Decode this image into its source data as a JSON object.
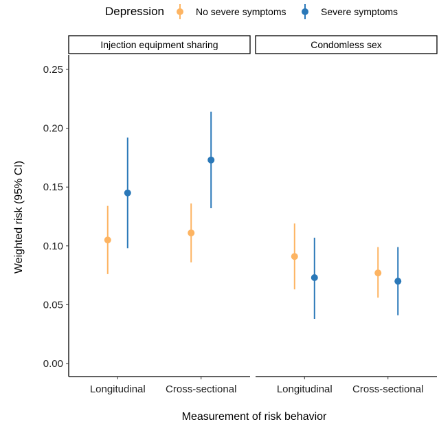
{
  "chart_data": {
    "type": "scatter",
    "subtype": "pointrange-faceted",
    "legend": {
      "title": "Depression",
      "position": "top",
      "entries": [
        {
          "label": "No severe symptoms",
          "color": "#FDB462"
        },
        {
          "label": "Severe symptoms",
          "color": "#2A78B8"
        }
      ]
    },
    "ylabel": "Weighted risk (95% CI)",
    "xlabel": "Measurement of risk behavior",
    "ylim": [
      0.0,
      0.26
    ],
    "yticks": [
      "0.00",
      "0.05",
      "0.10",
      "0.15",
      "0.20",
      "0.25"
    ],
    "ytick_values": [
      0.0,
      0.05,
      0.1,
      0.15,
      0.2,
      0.25
    ],
    "categories": [
      "Longitudinal",
      "Cross-sectional"
    ],
    "grid": false,
    "facets": [
      {
        "title": "Injection equipment sharing",
        "series": [
          {
            "name": "No severe symptoms",
            "color": "#FDB462",
            "points": [
              {
                "category": "Longitudinal",
                "estimate": 0.105,
                "lower": 0.076,
                "upper": 0.134
              },
              {
                "category": "Cross-sectional",
                "estimate": 0.111,
                "lower": 0.086,
                "upper": 0.136
              }
            ]
          },
          {
            "name": "Severe symptoms",
            "color": "#2A78B8",
            "points": [
              {
                "category": "Longitudinal",
                "estimate": 0.145,
                "lower": 0.098,
                "upper": 0.192
              },
              {
                "category": "Cross-sectional",
                "estimate": 0.173,
                "lower": 0.132,
                "upper": 0.214
              }
            ]
          }
        ]
      },
      {
        "title": "Condomless sex",
        "series": [
          {
            "name": "No severe symptoms",
            "color": "#FDB462",
            "points": [
              {
                "category": "Longitudinal",
                "estimate": 0.091,
                "lower": 0.063,
                "upper": 0.119
              },
              {
                "category": "Cross-sectional",
                "estimate": 0.077,
                "lower": 0.056,
                "upper": 0.099
              }
            ]
          },
          {
            "name": "Severe symptoms",
            "color": "#2A78B8",
            "points": [
              {
                "category": "Longitudinal",
                "estimate": 0.073,
                "lower": 0.038,
                "upper": 0.107
              },
              {
                "category": "Cross-sectional",
                "estimate": 0.07,
                "lower": 0.041,
                "upper": 0.099
              }
            ]
          }
        ]
      }
    ]
  }
}
